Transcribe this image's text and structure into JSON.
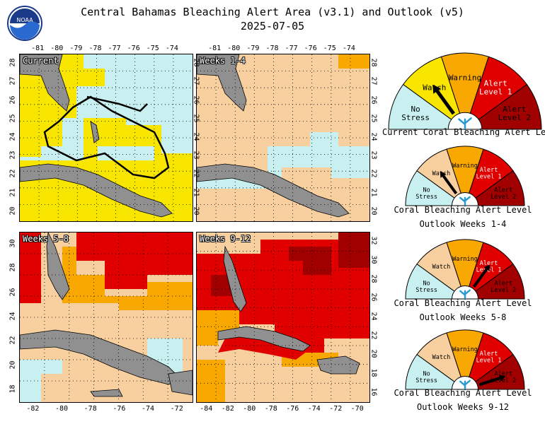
{
  "title": "Central Bahamas Bleaching Alert Area (v3.1) and Outlook (v5)",
  "date": "2025-07-05",
  "logo_text": "NOAA",
  "colors": {
    "no_stress": "#c8f0f0",
    "watch": "#f8e600",
    "watch_outlook": "#f8d0a0",
    "warning": "#f8a800",
    "alert1": "#e00000",
    "alert2": "#a00000",
    "land": "#909090",
    "grid": "#000000"
  },
  "panels": [
    {
      "label": "Current"
    },
    {
      "label": "Weeks 1-4"
    },
    {
      "label": "Weeks 5-8"
    },
    {
      "label": "Weeks 9-12"
    }
  ],
  "axes": {
    "top_lon_labels": [
      "-81",
      "-80",
      "-79",
      "-78",
      "-77",
      "-76",
      "-75",
      "-74"
    ],
    "left_lat_labels_top": [
      "28",
      "27",
      "26",
      "25",
      "24",
      "23",
      "22",
      "21",
      "20"
    ],
    "right_lat_labels_top": [
      "28",
      "27",
      "26",
      "25",
      "24",
      "23",
      "22",
      "21",
      "20"
    ],
    "left_lat_labels_bottom": [
      "30",
      "28",
      "26",
      "24",
      "22",
      "20",
      "18"
    ],
    "right_lat_labels_bottom": [
      "32",
      "30",
      "28",
      "26",
      "24",
      "22",
      "20",
      "18",
      "16"
    ],
    "bottom_lon_labels_left": [
      "-82",
      "-80",
      "-78",
      "-76",
      "-74",
      "-72"
    ],
    "bottom_lon_labels_right": [
      "-84",
      "-82",
      "-80",
      "-78",
      "-76",
      "-74",
      "-72",
      "-70"
    ]
  },
  "gauge_segments": {
    "no_stress": [
      "No",
      "Stress"
    ],
    "watch": "Watch",
    "warning": "Warning",
    "alert1": [
      "Alert",
      "Level 1"
    ],
    "alert2": [
      "Alert",
      "Level 2"
    ]
  },
  "gauges": [
    {
      "caption1": "Current Coral Bleaching Alert Level",
      "caption2": "",
      "level": "watch"
    },
    {
      "caption1": "Coral Bleaching Alert Level",
      "caption2": "Outlook Weeks 1-4",
      "level": "watch"
    },
    {
      "caption1": "Coral Bleaching Alert Level",
      "caption2": "Outlook Weeks 5-8",
      "level": "alert1"
    },
    {
      "caption1": "Coral Bleaching Alert Level",
      "caption2": "Outlook Weeks 9-12",
      "level": "alert2"
    }
  ]
}
